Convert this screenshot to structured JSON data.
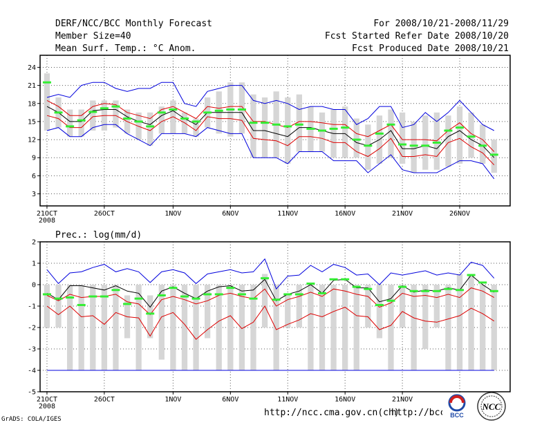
{
  "header": {
    "title": "DERF/NCC/BCC Monthly Forecast",
    "member_size": "Member Size=40",
    "variable": "Mean Surf. Temp.: °C Anom.",
    "period": "For 2008/10/21-2008/11/29",
    "started": "Fcst Started Refer Date 2008/10/20",
    "produced": "Fcst Produced Date 2008/10/21"
  },
  "footer": {
    "grads": "GrADS: COLA/IGES",
    "url1": "http://ncc.cma.gov.cn(ch)",
    "url2": "http://bcc.",
    "logo1": "BCC",
    "logo2": "NCC"
  },
  "colors": {
    "spread_box": "#d6d6d6",
    "median": "#33ee33",
    "mean": "#000000",
    "std_band": "#dd0000",
    "envelope": "#0000dd",
    "base_line": "#0000dd",
    "grid": "#555555"
  },
  "chart_data": [
    {
      "type": "line",
      "title": "Mean Surf. Temp.: °C Anom.",
      "xlabel": "",
      "ylabel": "",
      "ylim": [
        1,
        26
      ],
      "yticks": [
        3,
        6,
        9,
        12,
        15,
        18,
        21,
        24
      ],
      "x_ticks": [
        {
          "day": 0,
          "label": "21OCT",
          "sub": "2008"
        },
        {
          "day": 5,
          "label": "26OCT"
        },
        {
          "day": 11,
          "label": "1NOV"
        },
        {
          "day": 16,
          "label": "6NOV"
        },
        {
          "day": 21,
          "label": "11NOV"
        },
        {
          "day": 26,
          "label": "16NOV"
        },
        {
          "day": 31,
          "label": "21NOV"
        },
        {
          "day": 36,
          "label": "26NOV"
        }
      ],
      "x_range": [
        -0.6,
        40.4
      ],
      "days": [
        0,
        1,
        2,
        3,
        4,
        5,
        6,
        7,
        8,
        9,
        10,
        11,
        12,
        13,
        14,
        15,
        16,
        17,
        18,
        19,
        20,
        21,
        22,
        23,
        24,
        25,
        26,
        27,
        28,
        29,
        30,
        31,
        32,
        33,
        34,
        35,
        36,
        37,
        38,
        39
      ],
      "box_low": [
        13.5,
        14.0,
        12.5,
        12.5,
        13.5,
        13.5,
        14.0,
        13.0,
        12.0,
        11.0,
        13.0,
        13.0,
        13.0,
        12.5,
        14.0,
        13.0,
        12.5,
        13.0,
        9.0,
        9.0,
        9.0,
        8.0,
        10.0,
        10.0,
        10.0,
        9.0,
        9.0,
        9.0,
        7.0,
        8.0,
        9.0,
        8.0,
        6.5,
        7.0,
        7.0,
        7.5,
        8.0,
        9.0,
        8.0,
        6.5
      ],
      "box_high": [
        23.0,
        19.0,
        17.0,
        17.0,
        18.5,
        18.5,
        18.5,
        17.0,
        16.5,
        16.5,
        17.5,
        18.5,
        16.5,
        15.5,
        19.0,
        20.0,
        21.5,
        21.5,
        19.5,
        19.0,
        20.0,
        19.0,
        19.5,
        17.5,
        16.5,
        17.0,
        17.5,
        15.5,
        14.5,
        16.0,
        17.0,
        16.5,
        15.0,
        16.0,
        16.5,
        16.0,
        17.5,
        16.5,
        14.5,
        12.0
      ],
      "median": [
        21.5,
        16.5,
        14.2,
        15.2,
        16.6,
        17.2,
        17.5,
        15.5,
        15.0,
        14.2,
        16.5,
        17.0,
        15.5,
        15.0,
        16.5,
        16.8,
        17.0,
        17.0,
        14.8,
        14.8,
        14.5,
        14.2,
        14.5,
        13.8,
        13.5,
        13.8,
        14.0,
        12.0,
        11.0,
        13.0,
        14.5,
        11.2,
        11.0,
        11.0,
        11.5,
        13.5,
        14.0,
        12.5,
        11.0,
        9.5
      ],
      "mean": [
        17.5,
        16.5,
        15.0,
        15.0,
        16.8,
        17.0,
        17.0,
        15.8,
        15.0,
        14.5,
        16.0,
        16.8,
        15.5,
        14.5,
        16.5,
        16.5,
        16.5,
        16.5,
        13.5,
        13.5,
        13.0,
        12.5,
        14.0,
        14.0,
        13.5,
        13.0,
        13.0,
        11.5,
        11.0,
        12.0,
        13.5,
        10.5,
        10.5,
        11.0,
        10.5,
        12.5,
        13.5,
        12.0,
        11.0,
        9.0
      ],
      "std_high": [
        18.5,
        17.5,
        16.0,
        16.0,
        17.5,
        18.0,
        17.8,
        16.5,
        16.0,
        15.5,
        17.0,
        17.5,
        16.5,
        15.5,
        17.5,
        17.2,
        17.5,
        17.5,
        15.0,
        15.0,
        14.5,
        14.0,
        15.0,
        15.0,
        14.8,
        14.5,
        14.5,
        13.0,
        12.5,
        13.5,
        14.5,
        12.0,
        12.0,
        12.0,
        11.8,
        13.5,
        14.8,
        13.0,
        12.0,
        10.0
      ],
      "std_low": [
        16.0,
        15.5,
        14.0,
        14.0,
        15.8,
        16.0,
        16.0,
        15.0,
        14.2,
        13.5,
        15.0,
        15.8,
        14.8,
        13.5,
        15.8,
        15.5,
        15.5,
        15.2,
        12.2,
        12.0,
        11.8,
        11.0,
        12.5,
        12.5,
        12.2,
        11.5,
        11.5,
        10.0,
        9.2,
        10.5,
        12.2,
        9.2,
        9.2,
        9.5,
        9.2,
        11.5,
        12.2,
        10.8,
        9.8,
        7.8
      ],
      "env_high": [
        19.0,
        19.5,
        19.0,
        21.0,
        21.5,
        21.5,
        20.5,
        20.0,
        20.5,
        20.5,
        21.5,
        21.5,
        18.0,
        17.5,
        20.0,
        20.5,
        21.0,
        21.0,
        18.5,
        18.0,
        18.5,
        18.0,
        17.0,
        17.5,
        17.5,
        17.0,
        17.0,
        14.5,
        15.5,
        17.5,
        17.5,
        14.0,
        14.5,
        16.5,
        15.0,
        16.5,
        18.5,
        16.5,
        14.5,
        13.5
      ],
      "env_low": [
        13.5,
        14.0,
        12.5,
        12.5,
        14.0,
        14.5,
        14.5,
        13.0,
        12.0,
        11.0,
        13.0,
        13.0,
        13.0,
        12.5,
        14.0,
        13.5,
        13.0,
        13.0,
        9.0,
        9.0,
        9.0,
        8.0,
        10.0,
        10.0,
        10.0,
        8.5,
        8.5,
        8.5,
        6.5,
        8.0,
        9.5,
        7.0,
        6.5,
        6.5,
        6.5,
        7.5,
        8.5,
        8.5,
        8.0,
        5.5
      ]
    },
    {
      "type": "line",
      "title": "Prec.: log(mm/d)",
      "xlabel": "",
      "ylabel": "",
      "ylim": [
        -5,
        2
      ],
      "yticks": [
        -5,
        -4,
        -3,
        -2,
        -1,
        0,
        1,
        2
      ],
      "x_ticks": [
        {
          "day": 0,
          "label": "21OCT",
          "sub": "2008"
        },
        {
          "day": 5,
          "label": "26OCT"
        },
        {
          "day": 11,
          "label": "1NOV"
        },
        {
          "day": 16,
          "label": "6NOV"
        },
        {
          "day": 21,
          "label": "11NOV"
        },
        {
          "day": 26,
          "label": "16NOV"
        },
        {
          "day": 31,
          "label": "21NOV"
        },
        {
          "day": 36,
          "label": "26NOV"
        }
      ],
      "x_range": [
        -0.6,
        40.4
      ],
      "days": [
        0,
        1,
        2,
        3,
        4,
        5,
        6,
        7,
        8,
        9,
        10,
        11,
        12,
        13,
        14,
        15,
        16,
        17,
        18,
        19,
        20,
        21,
        22,
        23,
        24,
        25,
        26,
        27,
        28,
        29,
        30,
        31,
        32,
        33,
        34,
        35,
        36,
        37,
        38,
        39
      ],
      "base_value": -4.0,
      "box_low": [
        -2.0,
        -2.0,
        -4.0,
        -4.0,
        -4.0,
        -4.0,
        -4.0,
        -2.5,
        -4.0,
        -2.5,
        -3.5,
        -4.0,
        -4.0,
        -4.0,
        -2.5,
        -4.0,
        -4.0,
        -4.0,
        -4.0,
        -2.0,
        -4.0,
        -2.0,
        -2.0,
        -4.0,
        -4.0,
        -4.0,
        -4.0,
        -4.0,
        -2.0,
        -2.5,
        -4.0,
        -2.0,
        -4.0,
        -3.0,
        -2.0,
        -4.0,
        -4.0,
        -4.0,
        -4.0,
        -4.0
      ],
      "box_high": [
        0.0,
        0.0,
        0.0,
        0.0,
        0.0,
        0.0,
        0.0,
        -0.5,
        0.0,
        -0.5,
        0.0,
        0.0,
        0.0,
        0.0,
        0.0,
        0.0,
        0.0,
        0.0,
        0.0,
        0.5,
        0.0,
        -0.5,
        0.0,
        0.0,
        0.0,
        0.0,
        0.0,
        0.0,
        0.0,
        0.0,
        0.0,
        0.0,
        0.0,
        0.0,
        0.0,
        0.0,
        0.5,
        0.5,
        0.0,
        0.0
      ],
      "median": [
        -0.45,
        -0.65,
        -0.6,
        -0.95,
        -0.55,
        -0.55,
        -0.25,
        -0.9,
        -0.65,
        -1.35,
        -0.5,
        -0.15,
        -0.55,
        -0.65,
        -0.45,
        -0.45,
        -0.15,
        -0.45,
        -0.65,
        0.3,
        -0.7,
        -0.45,
        -0.45,
        0.05,
        -0.4,
        0.25,
        0.25,
        -0.1,
        -0.2,
        -0.95,
        -0.75,
        -0.1,
        -0.3,
        -0.3,
        -0.3,
        -0.2,
        -0.25,
        0.45,
        0.1,
        -0.3
      ],
      "mean": [
        -0.4,
        -0.7,
        -0.05,
        -0.05,
        -0.15,
        -0.25,
        -0.05,
        -0.3,
        -0.4,
        -1.05,
        -0.3,
        -0.1,
        -0.4,
        -0.65,
        -0.3,
        -0.1,
        -0.05,
        -0.3,
        -0.25,
        0.25,
        -0.75,
        -0.45,
        -0.3,
        0.0,
        -0.4,
        0.2,
        0.25,
        -0.15,
        -0.15,
        -0.8,
        -0.65,
        -0.05,
        -0.35,
        -0.25,
        -0.3,
        -0.15,
        -0.25,
        0.45,
        0.0,
        -0.35
      ],
      "std_high": [
        -0.5,
        -0.75,
        -0.45,
        -0.6,
        -0.55,
        -0.55,
        -0.45,
        -0.8,
        -0.9,
        -1.4,
        -0.7,
        -0.55,
        -0.7,
        -0.9,
        -0.75,
        -0.5,
        -0.4,
        -0.55,
        -0.65,
        -0.2,
        -1.0,
        -0.7,
        -0.55,
        -0.35,
        -0.55,
        -0.2,
        -0.3,
        -0.45,
        -0.55,
        -1.05,
        -0.85,
        -0.4,
        -0.55,
        -0.5,
        -0.6,
        -0.45,
        -0.6,
        -0.15,
        -0.3,
        -0.6
      ],
      "std_low": [
        -1.0,
        -1.4,
        -1.0,
        -1.5,
        -1.45,
        -1.85,
        -1.3,
        -1.5,
        -1.55,
        -2.4,
        -1.5,
        -1.3,
        -1.85,
        -2.55,
        -2.1,
        -1.7,
        -1.45,
        -2.05,
        -1.75,
        -1.0,
        -2.1,
        -1.85,
        -1.65,
        -1.35,
        -1.5,
        -1.25,
        -1.05,
        -1.45,
        -1.5,
        -2.1,
        -1.9,
        -1.25,
        -1.55,
        -1.7,
        -1.75,
        -1.6,
        -1.45,
        -1.1,
        -1.35,
        -1.7
      ],
      "env_high": [
        0.7,
        0.05,
        0.55,
        0.6,
        0.8,
        0.95,
        0.6,
        0.75,
        0.6,
        0.1,
        0.6,
        0.7,
        0.55,
        0.05,
        0.5,
        0.6,
        0.7,
        0.55,
        0.6,
        1.2,
        -0.2,
        0.4,
        0.45,
        0.9,
        0.6,
        0.95,
        0.8,
        0.45,
        0.5,
        0.0,
        0.55,
        0.45,
        0.55,
        0.65,
        0.45,
        0.55,
        0.45,
        1.05,
        0.9,
        0.3
      ],
      "env_low": [
        -4.0,
        -4.0,
        -4.0,
        -4.0,
        -4.0,
        -4.0,
        -4.0,
        -4.0,
        -4.0,
        -4.0,
        -4.0,
        -4.0,
        -4.0,
        -4.0,
        -4.0,
        -4.0,
        -4.0,
        -4.0,
        -4.0,
        -4.0,
        -4.0,
        -4.0,
        -4.0,
        -4.0,
        -4.0,
        -4.0,
        -4.0,
        -4.0,
        -4.0,
        -4.0,
        -4.0,
        -4.0,
        -4.0,
        -4.0,
        -4.0,
        -4.0,
        -4.0,
        -4.0,
        -4.0,
        -4.0
      ]
    }
  ]
}
